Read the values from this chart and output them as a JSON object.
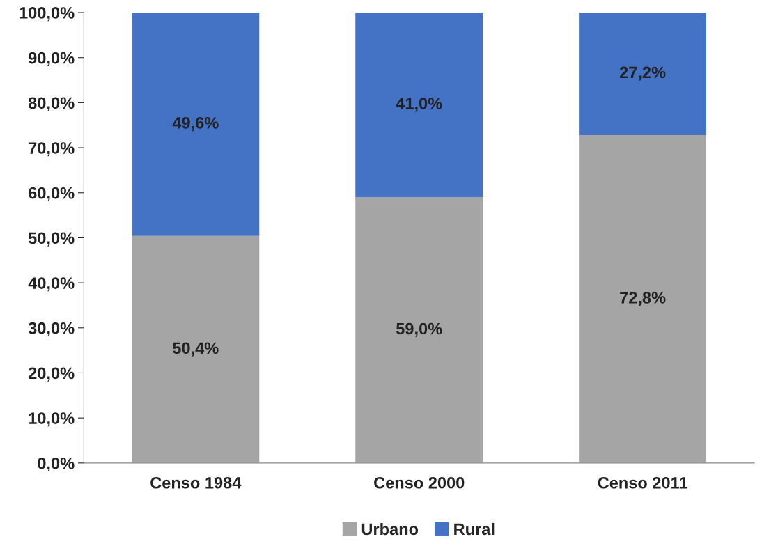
{
  "chart_data": {
    "type": "bar",
    "stacked": true,
    "categories": [
      "Censo 1984",
      "Censo 2000",
      "Censo 2011"
    ],
    "series": [
      {
        "name": "Urbano",
        "color": "#a5a5a5",
        "values": [
          50.4,
          59.0,
          72.8
        ],
        "value_labels": [
          "50,4%",
          "59,0%",
          "72,8%"
        ]
      },
      {
        "name": "Rural",
        "color": "#4472c4",
        "values": [
          49.6,
          41.0,
          27.2
        ],
        "value_labels": [
          "49,6%",
          "41,0%",
          "27,2%"
        ]
      }
    ],
    "ylim": [
      0,
      100
    ],
    "yticks": [
      {
        "value": 0,
        "label": "0,0%"
      },
      {
        "value": 10,
        "label": "10,0%"
      },
      {
        "value": 20,
        "label": "20,0%"
      },
      {
        "value": 30,
        "label": "30,0%"
      },
      {
        "value": 40,
        "label": "40,0%"
      },
      {
        "value": 50,
        "label": "50,0%"
      },
      {
        "value": 60,
        "label": "60,0%"
      },
      {
        "value": 70,
        "label": "70,0%"
      },
      {
        "value": 80,
        "label": "80,0%"
      },
      {
        "value": 90,
        "label": "90,0%"
      },
      {
        "value": 100,
        "label": "100,0%"
      }
    ],
    "grid": false,
    "legend": "bottom"
  }
}
